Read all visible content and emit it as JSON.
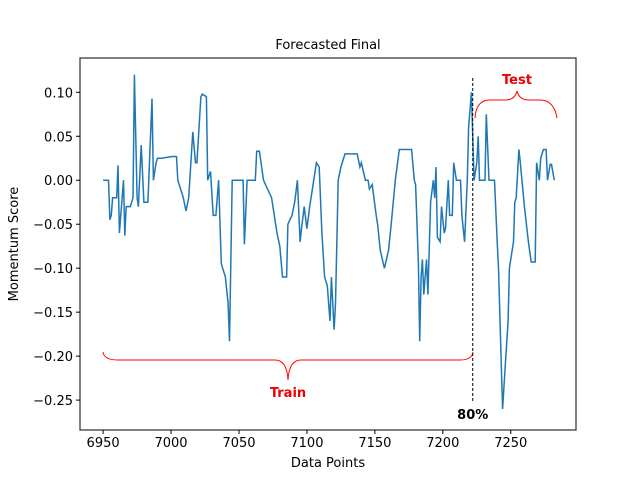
{
  "chart_data": {
    "type": "line",
    "title": "Forecasted Final",
    "x_label": "Data Points",
    "y_label": "Momentum Score",
    "color": "#1f77b4",
    "x": [
      6950,
      6954,
      6955,
      6956,
      6957,
      6960,
      6961,
      6962,
      6965,
      6966,
      6967,
      6970,
      6972,
      6973,
      6975,
      6976,
      6978,
      6980,
      6983,
      6986,
      6987,
      6989,
      6990,
      6993,
      7001,
      7004,
      7005,
      7007,
      7009,
      7011,
      7013,
      7016,
      7018,
      7019,
      7022,
      7023,
      7026,
      7027,
      7029,
      7031,
      7033,
      7035,
      7037,
      7040,
      7042,
      7043,
      7045,
      7053,
      7054,
      7056,
      7062,
      7063,
      7065,
      7068,
      7071,
      7074,
      7078,
      7080,
      7082,
      7085,
      7086,
      7089,
      7091,
      7093,
      7095,
      7096,
      7098,
      7100,
      7102,
      7104,
      7107,
      7109,
      7111,
      7113,
      7115,
      7117,
      7118,
      7120,
      7121,
      7123,
      7125,
      7128,
      7137,
      7139,
      7140,
      7143,
      7145,
      7146,
      7148,
      7151,
      7152,
      7154,
      7157,
      7160,
      7162,
      7165,
      7168,
      7177,
      7179,
      7180,
      7182,
      7183,
      7184,
      7185,
      7186,
      7188,
      7189,
      7191,
      7193,
      7194,
      7195,
      7196,
      7198,
      7199,
      7201,
      7202,
      7204,
      7205,
      7207,
      7208,
      7210,
      7213,
      7214,
      7216,
      7218,
      7219,
      7221,
      7223,
      7225,
      7226,
      7227,
      7231,
      7232,
      7234,
      7238,
      7240,
      7241,
      7243,
      7244,
      7246,
      7248,
      7249,
      7252,
      7253,
      7254,
      7256,
      7257,
      7260,
      7263,
      7265,
      7268,
      7269,
      7271,
      7272,
      7274,
      7276,
      7277,
      7279,
      7280,
      7282
    ],
    "values": [
      0,
      0,
      -0.045,
      -0.04,
      -0.02,
      -0.02,
      0.017,
      -0.06,
      0,
      -0.063,
      -0.03,
      -0.03,
      -0.02,
      0.12,
      -0.02,
      -0.03,
      0.04,
      -0.025,
      -0.025,
      0.093,
      0,
      0.02,
      0.025,
      0.025,
      0.027,
      0.027,
      0,
      -0.01,
      -0.02,
      -0.035,
      -0.02,
      0.055,
      0.02,
      0.02,
      0.095,
      0.098,
      0.095,
      0,
      0.01,
      -0.04,
      -0.04,
      0,
      -0.095,
      -0.11,
      -0.14,
      -0.183,
      0,
      0,
      -0.073,
      0,
      0,
      0.033,
      0.033,
      0,
      -0.01,
      -0.02,
      -0.06,
      -0.075,
      -0.11,
      -0.11,
      -0.05,
      -0.04,
      -0.025,
      0,
      -0.07,
      -0.055,
      -0.03,
      -0.055,
      -0.03,
      -0.01,
      0.02,
      0.015,
      -0.06,
      -0.11,
      -0.12,
      -0.16,
      -0.11,
      -0.17,
      -0.14,
      0,
      0.015,
      0.03,
      0.03,
      0.015,
      0.02,
      0,
      0,
      -0.01,
      -0.005,
      -0.04,
      -0.05,
      -0.08,
      -0.1,
      -0.08,
      -0.05,
      0,
      0.035,
      0.035,
      0,
      -0.005,
      -0.095,
      -0.183,
      -0.11,
      -0.09,
      -0.13,
      -0.09,
      -0.13,
      -0.025,
      0,
      -0.02,
      0.015,
      -0.065,
      -0.07,
      -0.03,
      -0.06,
      -0.055,
      0,
      -0.04,
      -0.04,
      0.02,
      0,
      0,
      -0.04,
      -0.07,
      0,
      0.06,
      0.1,
      0,
      0.02,
      0.05,
      0,
      0,
      0.075,
      0,
      0,
      -0.07,
      -0.1,
      -0.21,
      -0.26,
      -0.21,
      -0.16,
      -0.1,
      -0.07,
      -0.025,
      -0.02,
      0.035,
      0.02,
      -0.03,
      -0.07,
      -0.093,
      -0.093,
      0.02,
      0,
      0.025,
      0.035,
      0.035,
      0,
      0.018,
      0.018,
      0
    ],
    "xlim": [
      6933,
      7298
    ],
    "ylim": [
      -0.284,
      0.139
    ],
    "xticks": [
      6950,
      7000,
      7050,
      7100,
      7150,
      7200,
      7250
    ],
    "yticks": [
      {
        "value": -0.25,
        "label": "−0.25"
      },
      {
        "value": -0.2,
        "label": "−0.20"
      },
      {
        "value": -0.15,
        "label": "−0.15"
      },
      {
        "value": -0.1,
        "label": "−0.10"
      },
      {
        "value": -0.05,
        "label": "−0.05"
      },
      {
        "value": 0,
        "label": "0.00"
      },
      {
        "value": 0.05,
        "label": "0.05"
      },
      {
        "value": 0.1,
        "label": "0.10"
      }
    ],
    "split": {
      "x": 7222,
      "label": "80%"
    },
    "annotations": {
      "train": "Train",
      "test": "Test"
    }
  }
}
